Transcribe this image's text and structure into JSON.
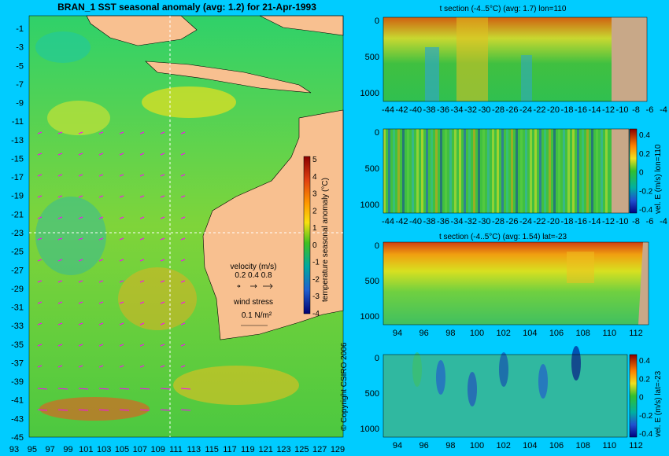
{
  "map": {
    "title": "BRAN_1  SST seasonal anomaly  (avg: 1.2) for 21-Apr-1993",
    "lat_ticks": [
      "-1",
      "-3",
      "-5",
      "-7",
      "-9",
      "-11",
      "-13",
      "-15",
      "-17",
      "-19",
      "-21",
      "-23",
      "-25",
      "-27",
      "-29",
      "-31",
      "-33",
      "-35",
      "-37",
      "-39",
      "-41",
      "-43",
      "-45"
    ],
    "lon_ticks": [
      "93",
      "95",
      "97",
      "99",
      "101",
      "103",
      "105",
      "107",
      "109",
      "111",
      "113",
      "115",
      "117",
      "119",
      "121",
      "123",
      "125",
      "127",
      "129"
    ],
    "colorbar_label": "temperature seasonal anomaly (°C)",
    "colorbar_ticks": [
      "5",
      "4",
      "3",
      "2",
      "1",
      "0",
      "-1",
      "-2",
      "-3",
      "-4"
    ],
    "velocity_title": "velocity (m/s)",
    "velocity_scale": "0.2 0.4 0.8",
    "wind_title": "wind stress",
    "wind_scale": "0.1 N/m²",
    "copyright": "© Copyright CSIRO 2006"
  },
  "panels": [
    {
      "subtitle": "t section (-4..5°C) (avg: 1.7) lon=110",
      "depth_ticks": [
        "0",
        "500",
        "1000"
      ],
      "x_ticks": [
        "-44",
        "-42",
        "-40",
        "-38",
        "-36",
        "-34",
        "-32",
        "-30",
        "-28",
        "-26",
        "-24",
        "-22",
        "-20",
        "-18",
        "-16",
        "-14",
        "-12",
        "-10",
        "-8",
        "-6",
        "-4"
      ]
    },
    {
      "subtitle": "",
      "depth_ticks": [
        "0",
        "500",
        "1000"
      ],
      "x_ticks": [
        "-44",
        "-42",
        "-40",
        "-38",
        "-36",
        "-34",
        "-32",
        "-30",
        "-28",
        "-26",
        "-24",
        "-22",
        "-20",
        "-18",
        "-16",
        "-14",
        "-12",
        "-10",
        "-8",
        "-6",
        "-4"
      ],
      "cb_label": "vel. E (m/s) lon=110",
      "cb_ticks": [
        "0.4",
        "0.2",
        "0",
        "-0.2",
        "-0.4"
      ]
    },
    {
      "subtitle": "t section (-4..5°C) (avg: 1.54) lat=-23",
      "depth_ticks": [
        "0",
        "500",
        "1000"
      ],
      "x_ticks": [
        "94",
        "96",
        "98",
        "100",
        "102",
        "104",
        "106",
        "108",
        "110",
        "112"
      ]
    },
    {
      "subtitle": "",
      "depth_ticks": [
        "0",
        "500",
        "1000"
      ],
      "x_ticks": [
        "94",
        "96",
        "98",
        "100",
        "102",
        "104",
        "106",
        "108",
        "110",
        "112"
      ],
      "cb_label": "vel. E (m/s) lat=-23",
      "cb_ticks": [
        "0.4",
        "0.2",
        "0",
        "-0.2",
        "-0.4"
      ]
    }
  ],
  "chart_data": [
    {
      "type": "heatmap",
      "title": "BRAN_1  SST seasonal anomaly  (avg: 1.2) for 21-Apr-1993",
      "xlim": [
        93,
        129
      ],
      "ylim": [
        -45,
        -1
      ],
      "colorbar": {
        "label": "temperature seasonal anomaly (°C)",
        "range": [
          -4,
          5
        ]
      }
    },
    {
      "type": "heatmap",
      "title": "t section (-4..5°C) (avg: 1.7) lon=110",
      "xlim": [
        -44,
        -4
      ],
      "ylim": [
        1000,
        0
      ]
    },
    {
      "type": "heatmap",
      "xlim": [
        -44,
        -4
      ],
      "ylim": [
        1000,
        0
      ],
      "colorbar": {
        "label": "vel. E (m/s) lon=110",
        "range": [
          -0.4,
          0.4
        ]
      }
    },
    {
      "type": "heatmap",
      "title": "t section (-4..5°C) (avg: 1.54) lat=-23",
      "xlim": [
        93,
        113
      ],
      "ylim": [
        1000,
        0
      ]
    },
    {
      "type": "heatmap",
      "xlim": [
        93,
        113
      ],
      "ylim": [
        1000,
        0
      ],
      "colorbar": {
        "label": "vel. E (m/s) lat=-23",
        "range": [
          -0.4,
          0.4
        ]
      }
    }
  ]
}
